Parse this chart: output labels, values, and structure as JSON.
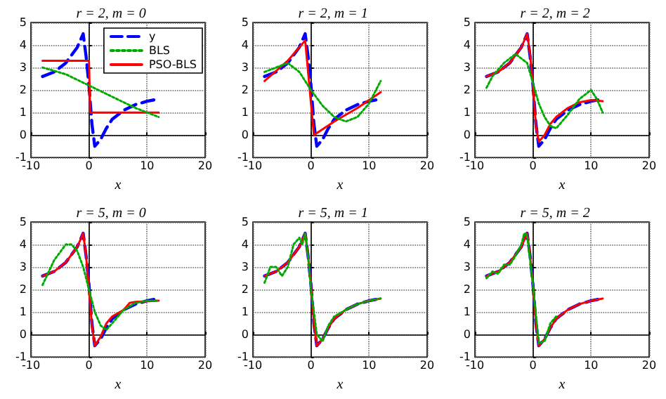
{
  "chart_data": [
    {
      "type": "line",
      "title": "r = 2, m = 0",
      "xlabel": "x",
      "xlim": [
        -10,
        20
      ],
      "xticks": [
        -10,
        0,
        10,
        20
      ],
      "ylim": [
        -1,
        5
      ],
      "yticks": [
        -1,
        0,
        1,
        2,
        3,
        4,
        5
      ],
      "grid": true,
      "legend": "top right",
      "series": [
        {
          "name": "y",
          "color": "#0000ff",
          "line_style": "dashed",
          "x": [
            -8,
            -6,
            -4,
            -2,
            -1,
            -0.5,
            0,
            0.5,
            1,
            2,
            3,
            4,
            6,
            8,
            10,
            12
          ],
          "values": [
            2.6,
            2.8,
            3.2,
            3.9,
            4.5,
            3.5,
            2.2,
            0.5,
            -0.5,
            -0.2,
            0.3,
            0.7,
            1.1,
            1.35,
            1.5,
            1.6
          ]
        },
        {
          "name": "BLS",
          "color": "#00aa00",
          "line_style": "dotted",
          "x": [
            -8,
            -4,
            0,
            4,
            8,
            12
          ],
          "values": [
            3.0,
            2.7,
            2.2,
            1.7,
            1.2,
            0.8
          ]
        },
        {
          "name": "PSO-BLS",
          "color": "#ff0000",
          "line_style": "solid",
          "x": [
            -8,
            0,
            0.2,
            12
          ],
          "values": [
            3.3,
            3.3,
            1.0,
            1.0
          ]
        }
      ]
    },
    {
      "type": "line",
      "title": "r = 2, m = 1",
      "xlabel": "x",
      "xlim": [
        -10,
        20
      ],
      "xticks": [
        -10,
        0,
        10,
        20
      ],
      "ylim": [
        -1,
        5
      ],
      "yticks": [
        -1,
        0,
        1,
        2,
        3,
        4,
        5
      ],
      "grid": true,
      "series": [
        {
          "color": "#0000ff",
          "line_style": "dashed",
          "x": [
            -8,
            -6,
            -4,
            -2,
            -1,
            -0.5,
            0,
            0.5,
            1,
            2,
            3,
            4,
            6,
            8,
            10,
            12
          ],
          "values": [
            2.6,
            2.8,
            3.2,
            3.9,
            4.5,
            3.5,
            2.2,
            0.5,
            -0.5,
            -0.2,
            0.3,
            0.7,
            1.1,
            1.35,
            1.5,
            1.6
          ]
        },
        {
          "color": "#00aa00",
          "line_style": "dotted",
          "x": [
            -8,
            -6,
            -4,
            -2,
            0,
            2,
            4,
            6,
            8,
            10,
            12
          ],
          "values": [
            2.8,
            3.0,
            3.2,
            2.8,
            2.0,
            1.3,
            0.8,
            0.6,
            0.8,
            1.4,
            2.4
          ]
        },
        {
          "color": "#ff0000",
          "line_style": "solid",
          "x": [
            -8,
            -4,
            -1,
            0.5,
            4,
            8,
            12
          ],
          "values": [
            2.4,
            3.3,
            4.2,
            0.0,
            0.6,
            1.2,
            1.9
          ]
        }
      ]
    },
    {
      "type": "line",
      "title": "r = 2, m = 2",
      "xlabel": "x",
      "xlim": [
        -10,
        20
      ],
      "xticks": [
        -10,
        0,
        10,
        20
      ],
      "ylim": [
        -1,
        5
      ],
      "yticks": [
        -1,
        0,
        1,
        2,
        3,
        4,
        5
      ],
      "grid": true,
      "series": [
        {
          "color": "#0000ff",
          "line_style": "dashed",
          "x": [
            -8,
            -6,
            -4,
            -2,
            -1,
            -0.5,
            0,
            0.5,
            1,
            2,
            3,
            4,
            6,
            8,
            10,
            12
          ],
          "values": [
            2.6,
            2.8,
            3.2,
            3.9,
            4.5,
            3.5,
            2.2,
            0.5,
            -0.5,
            -0.2,
            0.3,
            0.7,
            1.1,
            1.35,
            1.5,
            1.6
          ]
        },
        {
          "color": "#00aa00",
          "line_style": "dotted",
          "x": [
            -8,
            -7,
            -5,
            -3,
            -1,
            0,
            1,
            2,
            3,
            4,
            6,
            8,
            10,
            11,
            12
          ],
          "values": [
            2.1,
            2.6,
            3.2,
            3.6,
            3.2,
            2.3,
            1.4,
            0.8,
            0.4,
            0.3,
            0.9,
            1.6,
            2.0,
            1.6,
            1.0
          ]
        },
        {
          "color": "#ff0000",
          "line_style": "solid",
          "x": [
            -8,
            -6,
            -4,
            -2,
            -1,
            -0.5,
            0,
            0.5,
            1,
            2,
            3,
            4,
            6,
            8,
            10,
            12
          ],
          "values": [
            2.6,
            2.8,
            3.2,
            3.9,
            4.5,
            3.6,
            2.2,
            0.4,
            -0.3,
            0.0,
            0.5,
            0.8,
            1.2,
            1.45,
            1.55,
            1.5
          ]
        }
      ]
    },
    {
      "type": "line",
      "title": "r = 5, m = 0",
      "xlabel": "x",
      "xlim": [
        -10,
        20
      ],
      "xticks": [
        -10,
        0,
        10,
        20
      ],
      "ylim": [
        -1,
        5
      ],
      "yticks": [
        -1,
        0,
        1,
        2,
        3,
        4,
        5
      ],
      "grid": true,
      "series": [
        {
          "color": "#0000ff",
          "line_style": "dashed",
          "x": [
            -8,
            -6,
            -4,
            -2,
            -1,
            -0.5,
            0,
            0.5,
            1,
            2,
            3,
            4,
            6,
            8,
            10,
            12
          ],
          "values": [
            2.6,
            2.8,
            3.2,
            3.9,
            4.5,
            3.5,
            2.2,
            0.5,
            -0.5,
            -0.2,
            0.3,
            0.7,
            1.1,
            1.35,
            1.5,
            1.6
          ]
        },
        {
          "color": "#00aa00",
          "line_style": "dotted",
          "x": [
            -8,
            -6,
            -4,
            -3,
            -2,
            -1,
            0,
            1,
            2,
            3,
            4,
            6,
            8,
            10,
            12
          ],
          "values": [
            2.2,
            3.3,
            4.0,
            4.0,
            3.7,
            3.0,
            2.0,
            1.0,
            0.4,
            0.2,
            0.5,
            1.1,
            1.4,
            1.5,
            1.5
          ]
        },
        {
          "color": "#ff0000",
          "line_style": "solid",
          "x": [
            -8,
            -6,
            -4,
            -2,
            -1,
            -0.5,
            0,
            0.5,
            1,
            2,
            3,
            4,
            6,
            7,
            8,
            12
          ],
          "values": [
            2.6,
            2.8,
            3.2,
            3.9,
            4.5,
            3.5,
            2.0,
            0.4,
            -0.5,
            -0.1,
            0.5,
            0.8,
            1.1,
            1.4,
            1.45,
            1.5
          ]
        }
      ]
    },
    {
      "type": "line",
      "title": "r = 5, m = 1",
      "xlabel": "x",
      "xlim": [
        -10,
        20
      ],
      "xticks": [
        -10,
        0,
        10,
        20
      ],
      "ylim": [
        -1,
        5
      ],
      "yticks": [
        -1,
        0,
        1,
        2,
        3,
        4,
        5
      ],
      "grid": true,
      "series": [
        {
          "color": "#0000ff",
          "line_style": "dashed",
          "x": [
            -8,
            -6,
            -4,
            -2,
            -1,
            -0.5,
            0,
            0.5,
            1,
            2,
            3,
            4,
            6,
            8,
            10,
            12
          ],
          "values": [
            2.6,
            2.8,
            3.2,
            3.9,
            4.5,
            3.5,
            2.2,
            0.5,
            -0.5,
            -0.2,
            0.3,
            0.7,
            1.1,
            1.35,
            1.5,
            1.6
          ]
        },
        {
          "color": "#00aa00",
          "line_style": "dotted",
          "x": [
            -8,
            -7,
            -6,
            -5,
            -4,
            -3,
            -2,
            -1.5,
            -1,
            -0.5,
            0,
            1,
            2,
            3,
            4,
            6,
            8,
            10,
            12
          ],
          "values": [
            2.3,
            3.0,
            3.0,
            2.6,
            3.0,
            4.0,
            4.3,
            4.0,
            4.5,
            3.5,
            2.0,
            0.0,
            -0.3,
            0.4,
            0.8,
            1.1,
            1.35,
            1.5,
            1.6
          ]
        },
        {
          "color": "#ff0000",
          "line_style": "solid",
          "x": [
            -8,
            -6,
            -4,
            -2,
            -1,
            -0.5,
            0,
            0.5,
            1,
            2,
            3,
            4,
            6,
            8,
            10,
            12
          ],
          "values": [
            2.6,
            2.8,
            3.2,
            3.9,
            4.5,
            3.5,
            2.2,
            0.5,
            -0.5,
            -0.2,
            0.3,
            0.7,
            1.1,
            1.35,
            1.5,
            1.6
          ]
        }
      ]
    },
    {
      "type": "line",
      "title": "r = 5, m = 2",
      "xlabel": "x",
      "xlim": [
        -10,
        20
      ],
      "xticks": [
        -10,
        0,
        10,
        20
      ],
      "ylim": [
        -1,
        5
      ],
      "yticks": [
        -1,
        0,
        1,
        2,
        3,
        4,
        5
      ],
      "grid": true,
      "series": [
        {
          "color": "#0000ff",
          "line_style": "dashed",
          "x": [
            -8,
            -6,
            -4,
            -2,
            -1,
            -0.5,
            0,
            0.5,
            1,
            2,
            3,
            4,
            6,
            8,
            10,
            12
          ],
          "values": [
            2.6,
            2.8,
            3.2,
            3.9,
            4.5,
            3.5,
            2.2,
            0.5,
            -0.5,
            -0.2,
            0.3,
            0.7,
            1.1,
            1.35,
            1.5,
            1.6
          ]
        },
        {
          "color": "#00aa00",
          "line_style": "dotted",
          "x": [
            -8,
            -7,
            -6,
            -5,
            -4,
            -3,
            -2,
            -1.5,
            -1,
            0,
            1,
            2,
            3,
            4
          ],
          "values": [
            2.5,
            2.8,
            2.7,
            3.1,
            3.1,
            3.5,
            4.0,
            4.5,
            4.4,
            2.2,
            -0.4,
            -0.3,
            0.5,
            0.8
          ]
        },
        {
          "color": "#ff0000",
          "line_style": "solid",
          "x": [
            -8,
            -6,
            -4,
            -2,
            -1,
            -0.5,
            0,
            0.5,
            1,
            2,
            3,
            4,
            6,
            8,
            10,
            12
          ],
          "values": [
            2.6,
            2.8,
            3.2,
            3.9,
            4.5,
            3.5,
            2.2,
            0.5,
            -0.5,
            -0.2,
            0.3,
            0.7,
            1.1,
            1.35,
            1.5,
            1.6
          ]
        }
      ]
    }
  ]
}
